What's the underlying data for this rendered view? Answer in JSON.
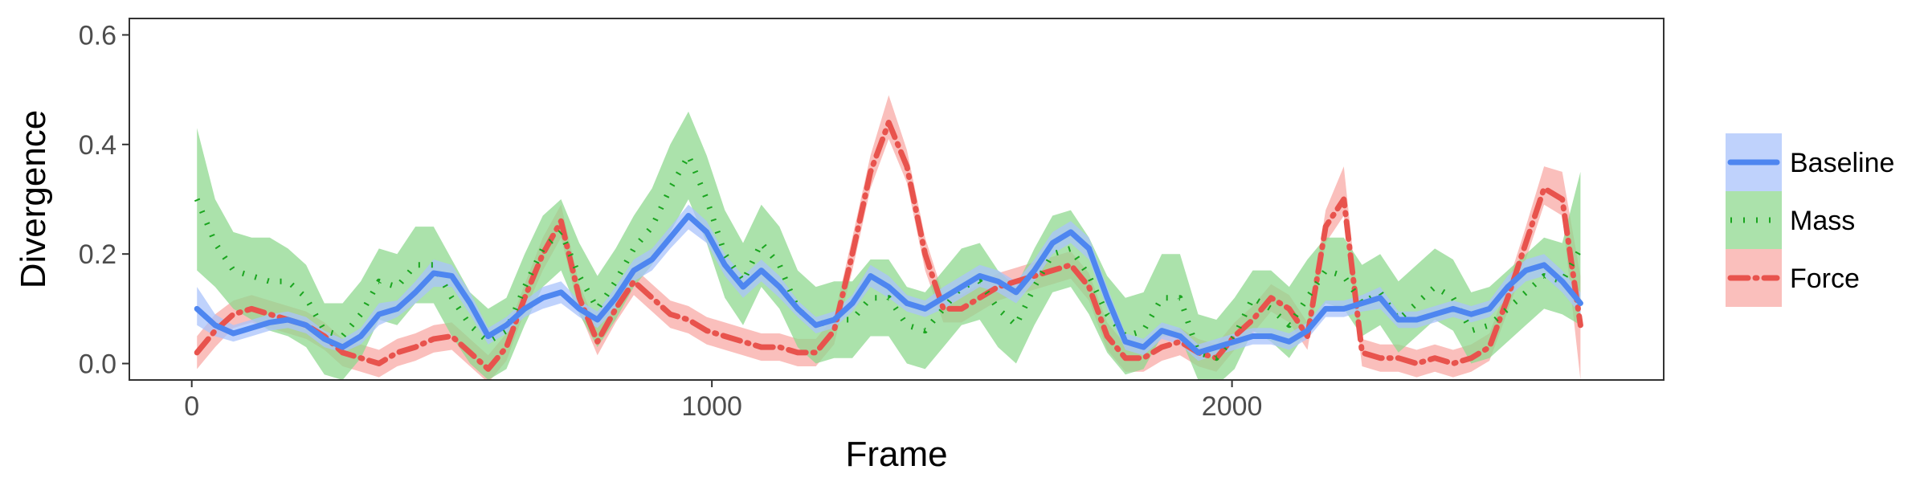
{
  "chart_data": {
    "type": "line",
    "title": "",
    "xlabel": "Frame",
    "ylabel": "Divergence",
    "xlim": [
      -120,
      2830
    ],
    "ylim": [
      -0.03,
      0.63
    ],
    "x_ticks": [
      0,
      1000,
      2000
    ],
    "x_tick_labels": [
      "0",
      "1000",
      "2000"
    ],
    "y_ticks": [
      0.0,
      0.2,
      0.4,
      0.6
    ],
    "y_tick_labels": [
      "0.0",
      "0.2",
      "0.4",
      "0.6"
    ],
    "grid": false,
    "legend_position": "right",
    "x": [
      10,
      45,
      80,
      115,
      150,
      185,
      220,
      255,
      290,
      325,
      360,
      395,
      430,
      465,
      500,
      535,
      570,
      605,
      640,
      675,
      710,
      745,
      780,
      815,
      850,
      885,
      920,
      955,
      990,
      1025,
      1060,
      1095,
      1130,
      1165,
      1200,
      1235,
      1270,
      1305,
      1340,
      1375,
      1410,
      1445,
      1480,
      1515,
      1550,
      1585,
      1620,
      1655,
      1690,
      1725,
      1760,
      1795,
      1830,
      1865,
      1900,
      1935,
      1970,
      2005,
      2040,
      2075,
      2110,
      2145,
      2180,
      2215,
      2250,
      2285,
      2320,
      2355,
      2390,
      2425,
      2460,
      2495,
      2530,
      2565,
      2600,
      2635,
      2670
    ],
    "series": [
      {
        "name": "Baseline",
        "color": "#4e86f0",
        "band_color": "#a9c3fb",
        "line_style": "solid",
        "values": [
          0.1,
          0.07,
          0.055,
          0.065,
          0.075,
          0.08,
          0.07,
          0.045,
          0.03,
          0.05,
          0.09,
          0.1,
          0.13,
          0.165,
          0.16,
          0.11,
          0.05,
          0.07,
          0.1,
          0.12,
          0.13,
          0.1,
          0.08,
          0.12,
          0.17,
          0.19,
          0.23,
          0.27,
          0.24,
          0.18,
          0.14,
          0.17,
          0.14,
          0.1,
          0.07,
          0.08,
          0.11,
          0.16,
          0.14,
          0.11,
          0.1,
          0.12,
          0.14,
          0.16,
          0.15,
          0.13,
          0.17,
          0.22,
          0.24,
          0.21,
          0.12,
          0.04,
          0.03,
          0.06,
          0.05,
          0.02,
          0.03,
          0.04,
          0.05,
          0.05,
          0.04,
          0.06,
          0.1,
          0.1,
          0.11,
          0.12,
          0.08,
          0.08,
          0.09,
          0.1,
          0.09,
          0.1,
          0.14,
          0.17,
          0.18,
          0.15,
          0.11
        ],
        "lower": [
          0.07,
          0.05,
          0.04,
          0.05,
          0.06,
          0.065,
          0.055,
          0.03,
          0.02,
          0.035,
          0.07,
          0.085,
          0.11,
          0.14,
          0.14,
          0.09,
          0.035,
          0.055,
          0.085,
          0.1,
          0.11,
          0.085,
          0.065,
          0.1,
          0.15,
          0.17,
          0.21,
          0.245,
          0.22,
          0.16,
          0.12,
          0.15,
          0.12,
          0.085,
          0.055,
          0.065,
          0.095,
          0.14,
          0.12,
          0.095,
          0.085,
          0.1,
          0.12,
          0.14,
          0.13,
          0.11,
          0.15,
          0.2,
          0.22,
          0.19,
          0.1,
          0.025,
          0.015,
          0.045,
          0.035,
          0.005,
          0.015,
          0.025,
          0.035,
          0.035,
          0.025,
          0.045,
          0.085,
          0.085,
          0.095,
          0.1,
          0.065,
          0.065,
          0.075,
          0.085,
          0.075,
          0.085,
          0.12,
          0.15,
          0.16,
          0.13,
          0.09
        ],
        "upper": [
          0.14,
          0.09,
          0.07,
          0.08,
          0.09,
          0.095,
          0.085,
          0.06,
          0.045,
          0.065,
          0.11,
          0.115,
          0.15,
          0.19,
          0.18,
          0.13,
          0.065,
          0.085,
          0.115,
          0.14,
          0.15,
          0.115,
          0.095,
          0.14,
          0.19,
          0.21,
          0.25,
          0.29,
          0.26,
          0.2,
          0.16,
          0.19,
          0.16,
          0.115,
          0.085,
          0.095,
          0.125,
          0.18,
          0.16,
          0.125,
          0.115,
          0.14,
          0.16,
          0.18,
          0.17,
          0.15,
          0.19,
          0.24,
          0.26,
          0.23,
          0.14,
          0.055,
          0.045,
          0.075,
          0.065,
          0.035,
          0.045,
          0.055,
          0.065,
          0.065,
          0.055,
          0.075,
          0.115,
          0.115,
          0.125,
          0.14,
          0.095,
          0.095,
          0.105,
          0.115,
          0.105,
          0.115,
          0.16,
          0.19,
          0.2,
          0.17,
          0.13
        ]
      },
      {
        "name": "Mass",
        "color": "#1aa51f",
        "band_color": "#8fd88f",
        "line_style": "dotted",
        "values": [
          0.3,
          0.22,
          0.17,
          0.16,
          0.15,
          0.15,
          0.12,
          0.06,
          0.05,
          0.09,
          0.15,
          0.14,
          0.18,
          0.18,
          0.12,
          0.07,
          0.04,
          0.06,
          0.14,
          0.21,
          0.24,
          0.16,
          0.1,
          0.15,
          0.21,
          0.25,
          0.32,
          0.38,
          0.3,
          0.2,
          0.15,
          0.22,
          0.18,
          0.1,
          0.07,
          0.08,
          0.08,
          0.12,
          0.12,
          0.07,
          0.06,
          0.1,
          0.14,
          0.15,
          0.1,
          0.07,
          0.14,
          0.2,
          0.21,
          0.16,
          0.09,
          0.05,
          0.06,
          0.12,
          0.12,
          0.02,
          0.01,
          0.05,
          0.12,
          0.1,
          0.07,
          0.12,
          0.17,
          0.16,
          0.11,
          0.13,
          0.08,
          0.11,
          0.14,
          0.12,
          0.06,
          0.07,
          0.1,
          0.13,
          0.16,
          0.15,
          0.21
        ],
        "lower": [
          0.17,
          0.14,
          0.1,
          0.08,
          0.06,
          0.05,
          0.03,
          -0.02,
          -0.03,
          0.01,
          0.08,
          0.07,
          0.11,
          0.11,
          0.05,
          0.0,
          -0.03,
          -0.01,
          0.07,
          0.14,
          0.17,
          0.09,
          0.03,
          0.08,
          0.14,
          0.18,
          0.24,
          0.3,
          0.22,
          0.12,
          0.07,
          0.14,
          0.1,
          0.03,
          0.0,
          0.01,
          0.01,
          0.05,
          0.05,
          0.0,
          -0.01,
          0.03,
          0.07,
          0.08,
          0.03,
          0.0,
          0.07,
          0.13,
          0.14,
          0.09,
          0.02,
          -0.02,
          -0.01,
          0.05,
          0.05,
          -0.03,
          -0.04,
          -0.01,
          0.06,
          0.04,
          0.01,
          0.06,
          0.11,
          0.1,
          0.05,
          0.07,
          0.02,
          0.05,
          0.08,
          0.06,
          0.0,
          0.01,
          0.04,
          0.07,
          0.1,
          0.09,
          0.07
        ],
        "upper": [
          0.43,
          0.3,
          0.24,
          0.23,
          0.23,
          0.21,
          0.18,
          0.11,
          0.11,
          0.15,
          0.21,
          0.2,
          0.25,
          0.25,
          0.19,
          0.13,
          0.1,
          0.12,
          0.2,
          0.27,
          0.3,
          0.22,
          0.16,
          0.21,
          0.27,
          0.32,
          0.4,
          0.46,
          0.38,
          0.28,
          0.22,
          0.29,
          0.25,
          0.17,
          0.14,
          0.15,
          0.15,
          0.19,
          0.19,
          0.14,
          0.13,
          0.17,
          0.21,
          0.22,
          0.17,
          0.14,
          0.21,
          0.27,
          0.28,
          0.23,
          0.16,
          0.12,
          0.13,
          0.2,
          0.2,
          0.09,
          0.08,
          0.12,
          0.17,
          0.17,
          0.14,
          0.19,
          0.23,
          0.23,
          0.18,
          0.2,
          0.15,
          0.18,
          0.21,
          0.19,
          0.13,
          0.14,
          0.17,
          0.2,
          0.23,
          0.22,
          0.35
        ]
      },
      {
        "name": "Force",
        "color": "#e8534d",
        "band_color": "#f8a9a5",
        "line_style": "dashdot",
        "values": [
          0.02,
          0.06,
          0.09,
          0.1,
          0.09,
          0.08,
          0.07,
          0.05,
          0.02,
          0.01,
          0.0,
          0.02,
          0.03,
          0.045,
          0.05,
          0.02,
          -0.01,
          0.03,
          0.12,
          0.2,
          0.26,
          0.12,
          0.04,
          0.1,
          0.15,
          0.12,
          0.09,
          0.08,
          0.06,
          0.05,
          0.04,
          0.03,
          0.03,
          0.02,
          0.02,
          0.06,
          0.2,
          0.35,
          0.44,
          0.36,
          0.2,
          0.1,
          0.1,
          0.12,
          0.14,
          0.15,
          0.16,
          0.17,
          0.18,
          0.14,
          0.05,
          0.01,
          0.01,
          0.03,
          0.04,
          0.02,
          0.01,
          0.05,
          0.08,
          0.12,
          0.1,
          0.05,
          0.25,
          0.3,
          0.02,
          0.01,
          0.01,
          0.0,
          0.01,
          0.0,
          0.01,
          0.03,
          0.12,
          0.22,
          0.32,
          0.3,
          0.07
        ],
        "lower": [
          -0.01,
          0.03,
          0.065,
          0.075,
          0.065,
          0.055,
          0.045,
          0.025,
          -0.005,
          -0.015,
          -0.025,
          -0.005,
          0.005,
          0.02,
          0.025,
          -0.005,
          -0.035,
          0.005,
          0.095,
          0.17,
          0.23,
          0.095,
          0.015,
          0.075,
          0.125,
          0.095,
          0.065,
          0.055,
          0.035,
          0.025,
          0.015,
          0.005,
          0.005,
          -0.005,
          -0.005,
          0.035,
          0.17,
          0.32,
          0.41,
          0.33,
          0.17,
          0.075,
          0.075,
          0.095,
          0.115,
          0.125,
          0.135,
          0.145,
          0.155,
          0.115,
          0.025,
          -0.015,
          -0.015,
          0.005,
          0.015,
          -0.005,
          -0.015,
          0.025,
          0.055,
          0.095,
          0.075,
          0.025,
          0.22,
          0.27,
          -0.005,
          -0.015,
          -0.015,
          -0.025,
          -0.015,
          -0.025,
          -0.015,
          0.005,
          0.095,
          0.19,
          0.29,
          0.27,
          -0.03
        ],
        "upper": [
          0.05,
          0.09,
          0.115,
          0.125,
          0.115,
          0.105,
          0.095,
          0.075,
          0.045,
          0.035,
          0.025,
          0.045,
          0.055,
          0.07,
          0.075,
          0.045,
          0.015,
          0.055,
          0.145,
          0.23,
          0.29,
          0.145,
          0.065,
          0.125,
          0.175,
          0.145,
          0.115,
          0.105,
          0.085,
          0.075,
          0.065,
          0.055,
          0.055,
          0.045,
          0.045,
          0.085,
          0.23,
          0.38,
          0.49,
          0.39,
          0.23,
          0.125,
          0.125,
          0.145,
          0.165,
          0.175,
          0.185,
          0.195,
          0.205,
          0.165,
          0.075,
          0.035,
          0.035,
          0.055,
          0.065,
          0.045,
          0.035,
          0.075,
          0.105,
          0.145,
          0.125,
          0.075,
          0.28,
          0.36,
          0.045,
          0.035,
          0.035,
          0.025,
          0.035,
          0.025,
          0.035,
          0.055,
          0.145,
          0.25,
          0.36,
          0.35,
          0.16
        ]
      }
    ]
  }
}
